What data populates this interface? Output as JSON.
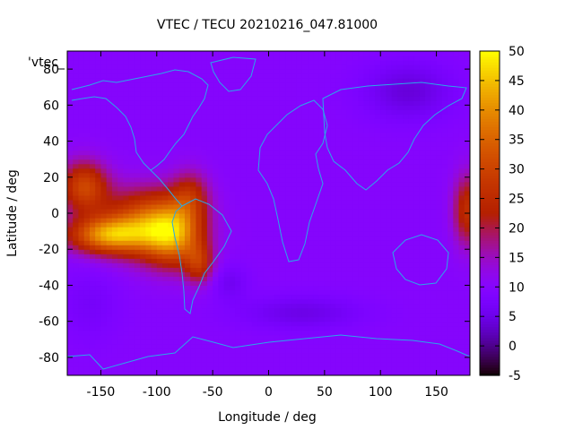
{
  "chart_data": {
    "type": "heatmap",
    "title": "VTEC / TECU 20210216_047.81000",
    "xlabel": "Longitude / deg",
    "ylabel": "Latitude / deg",
    "key_label": "'vtec_",
    "xlim": [
      -180,
      180
    ],
    "ylim": [
      -90,
      90
    ],
    "zlim": [
      -5,
      50
    ],
    "xticks": [
      -150,
      -100,
      -50,
      0,
      50,
      100,
      150
    ],
    "yticks": [
      -80,
      -60,
      -40,
      -20,
      0,
      20,
      40,
      60,
      80
    ],
    "cbticks": [
      -5,
      0,
      5,
      10,
      15,
      20,
      25,
      30,
      35,
      40,
      45,
      50
    ],
    "background_value": 10,
    "palette": "gnuplot black-purple-red-orange-yellow",
    "coastline_color": "#2aa8e8",
    "features": [
      {
        "lon": -165,
        "lat": 15,
        "value": 30,
        "sigma_lon": 15,
        "sigma_lat": 10
      },
      {
        "lon": -145,
        "lat": -12,
        "value": 36,
        "sigma_lon": 25,
        "sigma_lat": 7
      },
      {
        "lon": -110,
        "lat": -5,
        "value": 32,
        "sigma_lon": 28,
        "sigma_lat": 13
      },
      {
        "lon": -85,
        "lat": -12,
        "value": 34,
        "sigma_lon": 18,
        "sigma_lat": 12
      },
      {
        "lon": -70,
        "lat": 10,
        "value": 22,
        "sigma_lon": 12,
        "sigma_lat": 10
      },
      {
        "lon": -62,
        "lat": -28,
        "value": 24,
        "sigma_lon": 9,
        "sigma_lat": 8
      },
      {
        "lon": 178,
        "lat": 2,
        "value": 26,
        "sigma_lon": 9,
        "sigma_lat": 14
      },
      {
        "lon": 125,
        "lat": 68,
        "value": 4,
        "sigma_lon": 30,
        "sigma_lat": 12
      },
      {
        "lon": 30,
        "lat": -55,
        "value": 5,
        "sigma_lon": 40,
        "sigma_lat": 7
      },
      {
        "lon": -35,
        "lat": -38,
        "value": 6,
        "sigma_lon": 12,
        "sigma_lat": 7
      },
      {
        "lon": -160,
        "lat": -50,
        "value": 7,
        "sigma_lon": 20,
        "sigma_lat": 15
      }
    ]
  }
}
